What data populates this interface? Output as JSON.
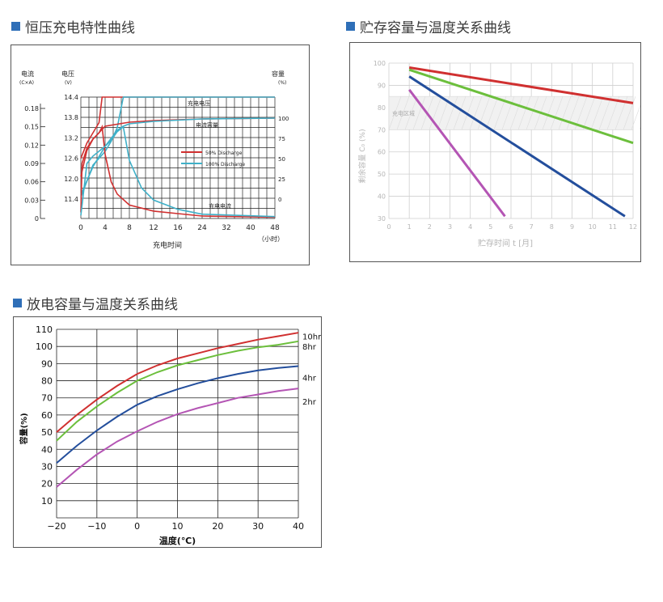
{
  "titles": {
    "charge": "恒压充电特性曲线",
    "storage": "贮存容量与温度关系曲线",
    "discharge": "放电容量与温度关系曲线"
  },
  "colors": {
    "accent": "#2f6fb8",
    "red": "#d03030",
    "cyan": "#3fb0c8",
    "green": "#6cbf3c",
    "blue": "#234e9c",
    "purple": "#b455b4"
  },
  "chart_data": [
    {
      "type": "line",
      "id": "charge",
      "title": "恒压充电特性曲线",
      "xlabel": "充电时间",
      "x_unit": "（小时）",
      "x_ticks": [
        "0",
        "4",
        "8",
        "12",
        "16",
        "24",
        "32",
        "40",
        "48"
      ],
      "left_axis": {
        "label": "电流",
        "unit": "(C×A)",
        "ticks": [
          "0",
          "0.03",
          "0.06",
          "0.09",
          "0.12",
          "0.15",
          "0.18"
        ]
      },
      "mid_axis": {
        "label": "电压",
        "unit": "(V)",
        "ticks": [
          "11.4",
          "12.0",
          "12.6",
          "13.2",
          "13.8",
          "14.4"
        ]
      },
      "right_axis": {
        "label": "容量",
        "unit": "(%)",
        "ticks": [
          "0",
          "25",
          "50",
          "75",
          "100"
        ]
      },
      "annotations": [
        "充电电压",
        "电流容量",
        "充电电流"
      ],
      "legend": [
        "50% Discharge",
        "100% Discharge"
      ],
      "legend_position": "center-right",
      "grid": true,
      "series": [
        {
          "name": "50% Discharge",
          "curve": "voltage",
          "color": "#d03030",
          "x": [
            0,
            1,
            2,
            3,
            3.5,
            48
          ],
          "y": [
            12.6,
            13.05,
            13.35,
            13.65,
            14.4,
            14.4
          ]
        },
        {
          "name": "100% Discharge",
          "curve": "voltage",
          "color": "#3fb0c8",
          "x": [
            0,
            2,
            4,
            5,
            6,
            7,
            48
          ],
          "y": [
            11.45,
            12.4,
            12.8,
            13.1,
            13.5,
            14.4,
            14.4
          ]
        },
        {
          "name": "50% Discharge",
          "curve": "capacity",
          "color": "#d03030",
          "x": [
            0,
            1,
            2,
            3,
            4,
            8,
            12,
            24,
            48
          ],
          "y": [
            28,
            60,
            74,
            82,
            90,
            95,
            97,
            99,
            100
          ]
        },
        {
          "name": "100% Discharge",
          "curve": "capacity",
          "color": "#3fb0c8",
          "x": [
            0,
            2,
            4,
            6,
            7,
            8,
            12,
            24,
            48
          ],
          "y": [
            5,
            40,
            65,
            85,
            90,
            93,
            96,
            99,
            100
          ]
        },
        {
          "name": "50% Discharge",
          "curve": "current",
          "color": "#d03030",
          "x": [
            0,
            0.2,
            1,
            2,
            3,
            3.5,
            4,
            5,
            6,
            8,
            12,
            16,
            24,
            48
          ],
          "y": [
            0.01,
            0.09,
            0.115,
            0.13,
            0.14,
            0.15,
            0.105,
            0.06,
            0.04,
            0.022,
            0.012,
            0.008,
            0.004,
            0.002
          ]
        },
        {
          "name": "100% Discharge",
          "curve": "current",
          "color": "#3fb0c8",
          "x": [
            0,
            1,
            2,
            3,
            4,
            5,
            6,
            7,
            8,
            10,
            12,
            16,
            24,
            48
          ],
          "y": [
            0.005,
            0.09,
            0.102,
            0.11,
            0.118,
            0.128,
            0.142,
            0.15,
            0.095,
            0.05,
            0.03,
            0.015,
            0.007,
            0.003
          ]
        }
      ]
    },
    {
      "type": "line",
      "id": "storage",
      "title": "贮存容量与温度关系曲线",
      "xlabel": "贮存时间 t [月]",
      "ylabel": "剩余容量 C₀ (%)",
      "xlim": [
        0,
        12
      ],
      "ylim": [
        30,
        100
      ],
      "x_ticks": [
        "0",
        "1",
        "2",
        "3",
        "4",
        "5",
        "6",
        "7",
        "8",
        "9",
        "10",
        "11",
        "12"
      ],
      "y_ticks": [
        "30",
        "40",
        "50",
        "60",
        "70",
        "80",
        "90",
        "100"
      ],
      "band": {
        "label": "充电区域",
        "ymin": 70,
        "ymax": 85
      },
      "grid": true,
      "series": [
        {
          "color": "#d03030",
          "x": [
            1,
            12
          ],
          "y": [
            98,
            82
          ]
        },
        {
          "color": "#6cbf3c",
          "x": [
            1,
            12
          ],
          "y": [
            97,
            64
          ]
        },
        {
          "color": "#234e9c",
          "x": [
            1,
            11.6
          ],
          "y": [
            94,
            31
          ]
        },
        {
          "color": "#b455b4",
          "x": [
            1,
            5.7
          ],
          "y": [
            88,
            31
          ]
        }
      ]
    },
    {
      "type": "line",
      "id": "discharge",
      "title": "放电容量与温度关系曲线",
      "xlabel": "温度(℃)",
      "ylabel": "容量(%)",
      "xlim": [
        -20,
        40
      ],
      "ylim": [
        0,
        110
      ],
      "x_ticks": [
        "−20",
        "−10",
        "0",
        "10",
        "20",
        "30",
        "40"
      ],
      "y_ticks": [
        "10",
        "20",
        "30",
        "40",
        "50",
        "60",
        "70",
        "80",
        "90",
        "100",
        "110"
      ],
      "grid": true,
      "series": [
        {
          "name": "10hr",
          "color": "#d03030",
          "x": [
            -20,
            -15,
            -10,
            -5,
            0,
            5,
            10,
            15,
            20,
            25,
            30,
            35,
            40
          ],
          "y": [
            50,
            60,
            69,
            77,
            84,
            89,
            93,
            96,
            99,
            101.5,
            104,
            106,
            108
          ]
        },
        {
          "name": "8hr",
          "color": "#6cbf3c",
          "x": [
            -20,
            -15,
            -10,
            -5,
            0,
            5,
            10,
            15,
            20,
            25,
            30,
            35,
            40
          ],
          "y": [
            45,
            56,
            65,
            73,
            80,
            85,
            89,
            92,
            95,
            97.5,
            99.5,
            101,
            103
          ]
        },
        {
          "name": "4hr",
          "color": "#234e9c",
          "x": [
            -20,
            -15,
            -10,
            -5,
            0,
            5,
            10,
            15,
            20,
            25,
            30,
            35,
            40
          ],
          "y": [
            32,
            42,
            51,
            59,
            66,
            71,
            75,
            78.5,
            81.5,
            84,
            86,
            87.5,
            88.5
          ]
        },
        {
          "name": "2hr",
          "color": "#b455b4",
          "x": [
            -20,
            -15,
            -10,
            -5,
            0,
            5,
            10,
            15,
            20,
            25,
            30,
            35,
            40
          ],
          "y": [
            18,
            28,
            37,
            44.5,
            50.5,
            56,
            60.5,
            64,
            67,
            70,
            72,
            74,
            75.5
          ]
        }
      ]
    }
  ]
}
